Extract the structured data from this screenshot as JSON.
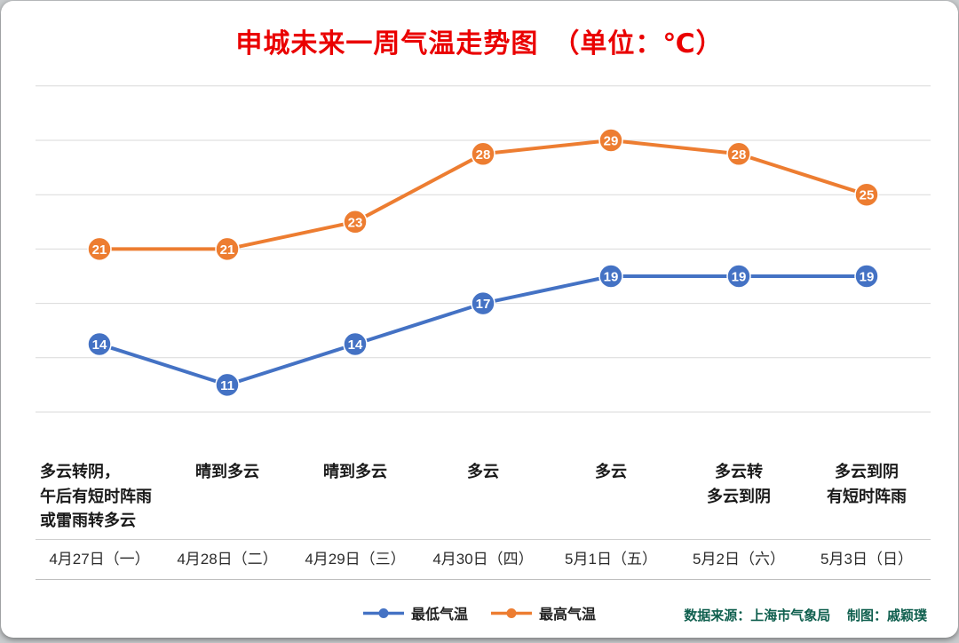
{
  "title": "申城未来一周气温走势图　（单位：℃）",
  "chart_data": {
    "type": "line",
    "categories": [
      "4月27日（一）",
      "4月28日（二）",
      "4月29日（三）",
      "4月30日（四）",
      "5月1日（五）",
      "5月2日（六）",
      "5月3日（日）"
    ],
    "series": [
      {
        "name": "最低气温",
        "color": "#4472C4",
        "values": [
          14,
          11,
          14,
          17,
          19,
          19,
          19
        ]
      },
      {
        "name": "最高气温",
        "color": "#ED7D31",
        "values": [
          21,
          21,
          23,
          28,
          29,
          28,
          25
        ]
      }
    ],
    "weather_labels": [
      "多云转阴，\n午后有短时阵雨\n或雷雨转多云",
      "晴到多云",
      "晴到多云",
      "多云",
      "多云",
      "多云转\n多云到阴",
      "多云到阴\n有短时阵雨"
    ],
    "title": "申城未来一周气温走势图",
    "unit": "℃",
    "ylim": [
      9,
      33
    ],
    "grid": true,
    "legend_position": "bottom",
    "marker_text_color": "#ffffff",
    "grid_color": "#d9d9d9"
  },
  "footer": {
    "source": "数据来源：上海市气象局　 制图：戚颖璞"
  }
}
